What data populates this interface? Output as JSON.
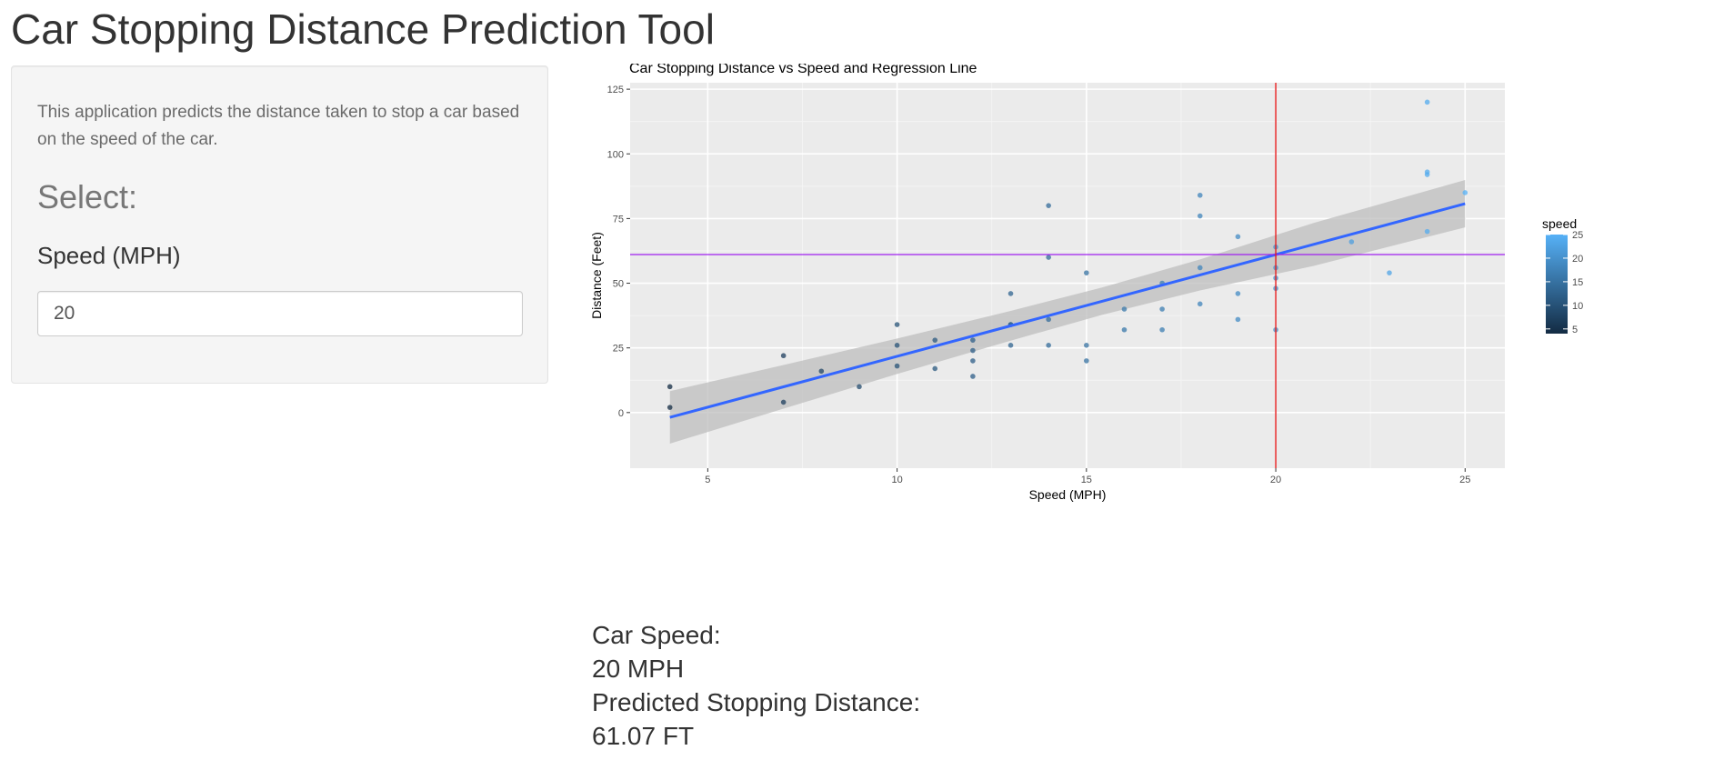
{
  "page": {
    "title": "Car Stopping Distance Prediction Tool"
  },
  "sidebar": {
    "description": "This application predicts the distance taken to stop a car based on the speed of the car.",
    "select_heading": "Select:",
    "speed_label": "Speed (MPH)",
    "speed_value": "20"
  },
  "results": {
    "speed_label": "Car Speed:",
    "speed_value": "20 MPH",
    "distance_label": "Predicted Stopping Distance:",
    "distance_value": "61.07 FT"
  },
  "colors": {
    "panel_background": "#ebebeb",
    "grid_major": "#ffffff",
    "grid_minor": "#f4f4f4",
    "regression_line": "#3366ff",
    "confidence_band": "#bdbdbd",
    "selected_speed_line": "#e41a1c",
    "predicted_distance_line": "#a020f0",
    "gradient_low": "#132b43",
    "gradient_high": "#56b1f7"
  },
  "chart_data": {
    "type": "scatter",
    "title": "Car Stopping Distance vs Speed and Regression Line",
    "xlabel": "Speed (MPH)",
    "ylabel": "Distance (Feet)",
    "xlim": [
      2.95,
      26.05
    ],
    "ylim": [
      -21.5,
      127.5
    ],
    "x_ticks": [
      5,
      10,
      15,
      20,
      25
    ],
    "y_ticks": [
      0,
      25,
      50,
      75,
      100,
      125
    ],
    "grid": true,
    "points": [
      {
        "x": 4,
        "y": 2
      },
      {
        "x": 4,
        "y": 10
      },
      {
        "x": 7,
        "y": 4
      },
      {
        "x": 7,
        "y": 22
      },
      {
        "x": 8,
        "y": 16
      },
      {
        "x": 9,
        "y": 10
      },
      {
        "x": 10,
        "y": 18
      },
      {
        "x": 10,
        "y": 26
      },
      {
        "x": 10,
        "y": 34
      },
      {
        "x": 11,
        "y": 17
      },
      {
        "x": 11,
        "y": 28
      },
      {
        "x": 12,
        "y": 14
      },
      {
        "x": 12,
        "y": 20
      },
      {
        "x": 12,
        "y": 24
      },
      {
        "x": 12,
        "y": 28
      },
      {
        "x": 13,
        "y": 26
      },
      {
        "x": 13,
        "y": 34
      },
      {
        "x": 13,
        "y": 34
      },
      {
        "x": 13,
        "y": 46
      },
      {
        "x": 14,
        "y": 26
      },
      {
        "x": 14,
        "y": 36
      },
      {
        "x": 14,
        "y": 60
      },
      {
        "x": 14,
        "y": 80
      },
      {
        "x": 15,
        "y": 20
      },
      {
        "x": 15,
        "y": 26
      },
      {
        "x": 15,
        "y": 54
      },
      {
        "x": 16,
        "y": 32
      },
      {
        "x": 16,
        "y": 40
      },
      {
        "x": 17,
        "y": 32
      },
      {
        "x": 17,
        "y": 40
      },
      {
        "x": 17,
        "y": 50
      },
      {
        "x": 18,
        "y": 42
      },
      {
        "x": 18,
        "y": 56
      },
      {
        "x": 18,
        "y": 76
      },
      {
        "x": 18,
        "y": 84
      },
      {
        "x": 19,
        "y": 36
      },
      {
        "x": 19,
        "y": 46
      },
      {
        "x": 19,
        "y": 68
      },
      {
        "x": 20,
        "y": 32
      },
      {
        "x": 20,
        "y": 48
      },
      {
        "x": 20,
        "y": 52
      },
      {
        "x": 20,
        "y": 56
      },
      {
        "x": 20,
        "y": 64
      },
      {
        "x": 22,
        "y": 66
      },
      {
        "x": 23,
        "y": 54
      },
      {
        "x": 24,
        "y": 70
      },
      {
        "x": 24,
        "y": 92
      },
      {
        "x": 24,
        "y": 93
      },
      {
        "x": 24,
        "y": 120
      },
      {
        "x": 25,
        "y": 85
      }
    ],
    "regression": {
      "x": [
        4,
        7,
        10,
        13,
        15.4,
        18,
        21,
        25
      ],
      "y": [
        -1.85,
        9.95,
        21.74,
        33.54,
        42.98,
        53.2,
        65.0,
        80.73
      ],
      "lower": [
        -12.0,
        1.5,
        14.9,
        27.8,
        37.7,
        47.2,
        56.7,
        71.6
      ],
      "upper": [
        8.3,
        18.4,
        28.6,
        39.3,
        48.3,
        59.2,
        73.3,
        89.9
      ]
    },
    "vline_x": 20,
    "hline_y": 61.07,
    "legend": {
      "title": "speed",
      "position": "right",
      "type": "gradient",
      "breaks": [
        5,
        10,
        15,
        20,
        25
      ],
      "range": [
        4,
        25
      ]
    }
  }
}
